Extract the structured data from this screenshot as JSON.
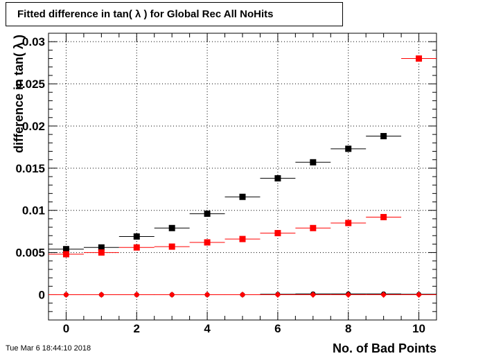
{
  "chart_data": {
    "type": "scatter",
    "title": "Fitted difference in tan( λ ) for Global Rec All NoHits",
    "xlabel": "No. of Bad Points",
    "ylabel": "difference in tan( λ )",
    "xlim": [
      -0.5,
      10.5
    ],
    "ylim": [
      -0.003,
      0.031
    ],
    "xticks": [
      0,
      2,
      4,
      6,
      8,
      10
    ],
    "xtick_labels": [
      "0",
      "2",
      "4",
      "6",
      "8",
      "10"
    ],
    "yticks": [
      0,
      0.005,
      0.01,
      0.015,
      0.02,
      0.025,
      0.03
    ],
    "ytick_labels": [
      "0",
      "0.005",
      "0.01",
      "0.015",
      "0.02",
      "0.025",
      "0.03"
    ],
    "grid": true,
    "series": [
      {
        "color": "#000000",
        "marker": "square",
        "x": [
          0,
          1,
          2,
          3,
          4,
          5,
          6,
          7,
          8,
          9
        ],
        "values": [
          0.0054,
          0.0056,
          0.0069,
          0.0079,
          0.0096,
          0.0116,
          0.0138,
          0.0157,
          0.0173,
          0.0188
        ]
      },
      {
        "color": "#ff0000",
        "marker": "square",
        "x": [
          0,
          1,
          2,
          3,
          4,
          5,
          6,
          7,
          8,
          9,
          10
        ],
        "values": [
          0.0048,
          0.005,
          0.0056,
          0.0057,
          0.0062,
          0.0066,
          0.0073,
          0.0079,
          0.0085,
          0.0092,
          0.028
        ]
      },
      {
        "color": "#000000",
        "marker": "circle",
        "x": [
          0,
          1,
          2,
          3,
          4,
          5,
          6,
          7,
          8,
          9,
          10
        ],
        "values": [
          0,
          0,
          0,
          0,
          0,
          0,
          5e-05,
          0.0001,
          0.0001,
          0.0001,
          5e-05
        ]
      },
      {
        "color": "#ff0000",
        "marker": "diamond",
        "x": [
          0,
          1,
          2,
          3,
          4,
          5,
          6,
          7,
          8,
          9,
          10
        ],
        "values": [
          0,
          0,
          0,
          0,
          0,
          0,
          0,
          0,
          0,
          0,
          0
        ]
      }
    ]
  },
  "timestamp": "Tue Mar  6 18:44:10 2018"
}
